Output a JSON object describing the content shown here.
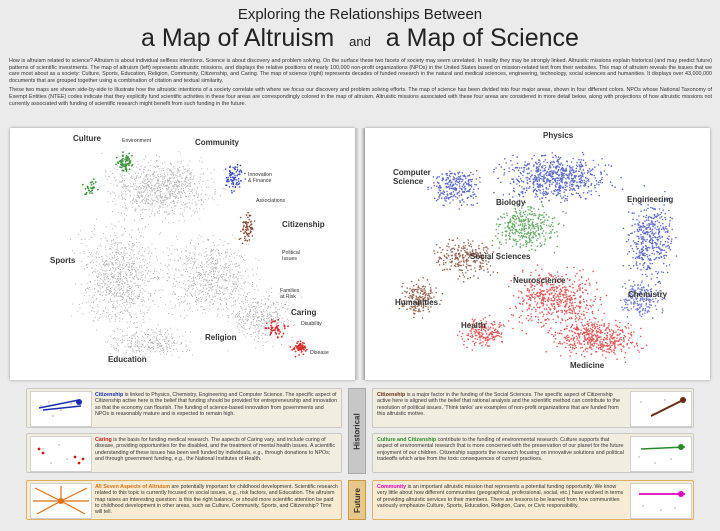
{
  "title": {
    "line1": "Exploring the Relationships Between",
    "left": "a Map of Altruism",
    "and": "and",
    "right": "a Map of Science"
  },
  "intro": {
    "p1": "How is altruism related to science? Altruism is about individual selfless intentions. Science is about discovery and problem solving. On the surface these two facets of society may seem unrelated. In reality they may be strongly linked. Altruistic missions explain historical (and may predict future) patterns of scientific investments. The map of altruism (left) represents altruistic missions, and displays the relative positions of nearly 100,000 non-profit organizations (NPOs) in the United States based on mission-related text from their websites. This map of altruism reveals the issues that we care most about as a society: Culture, Sports, Education, Religion, Community, Citizenship, and Caring. The map of science (right) represents decades of funded research in the natural and medical sciences, engineering, technology, social sciences and humanities. It displays over 43,000,000 documents that are grouped together using a combination of citation and textual similarity.",
    "p2": "These two maps are shown side-by-side to illustrate how the altruistic intentions of a society correlate with where we focus our discovery and problem solving efforts. The map of science has been divided into four major areas, shown in four different colors. NPOs whose National Taxonomy of Exempt Entities (NTEE) codes indicate that they explicitly fund scientific activities in these four areas are correspondingly colored in the map of altruism. Altruistic missions associated with these four areas are considered in more detail below, along with projections of how altruistic missions not currently associated with funding of scientific research might benefit from such funding in the future."
  },
  "altruism_labels": {
    "culture": "Culture",
    "environment": "Environment",
    "community": "Community",
    "innovation": "Innovation\n& Finance",
    "associations": "Associations",
    "citizenship": "Citizenship",
    "sports": "Sports",
    "political": "Political\nIssues",
    "families": "Families\nat Risk",
    "caring": "Caring",
    "disability": "Disability",
    "religion": "Religion",
    "education": "Education",
    "disease": "Disease"
  },
  "science_labels": {
    "physics": "Physics",
    "computer_science": "Computer\nScience",
    "engineering": "Engineering",
    "biology": "Biology",
    "social_sciences": "Social Sciences",
    "neuroscience": "Neuroscience",
    "humanities": "Humanities",
    "chemistry": "Chemistry",
    "health": "Health",
    "medicine": "Medicine"
  },
  "sections": {
    "historical": "Historical",
    "future": "Future"
  },
  "cards": {
    "citizenship_left": {
      "head": "Citizenship",
      "text": " is linked to Physics, Chemistry, Engineering and Computer Science. The specific aspect of Citizenship active here is the belief that funding should be provided for entrepreneurship and innovation so that the economy can flourish. The funding of science-based innovation from governments and NPOs is reasonably mature and is expected to remain high."
    },
    "caring_left": {
      "head": "Caring",
      "text": " is the basis for funding medical research. The aspects of Caring vary, and include curing of disease, providing opportunities for the disabled, and the treatment of mental health issues. A scientific understanding of these issues has been well funded by individuals, e.g., through donations to NPOs; and through government funding, e.g., the National Institutes of Health."
    },
    "all_seven": {
      "head": "All Seven Aspects of Altruism",
      "text": " are potentially important for childhood development. Scientific research related to this topic is currently focused on social issues, e.g., risk factors, and Education. The altruism map raises an interesting question: is this the right balance, or should more scientific attention be paid to childhood development in other areas, such as Culture, Community, Sports, and Citizenship? Time will tell."
    },
    "citizenship_right": {
      "head": "Citizenship",
      "text": " is a major factor in the funding of the Social Sciences. The specific aspect of Citizenship active here is aligned with the belief that rational analysis and the scientific method can contribute to the resolution of political issues. 'Think tanks' are examples of non-profit organizations that are funded from this altruistic motive."
    },
    "culture_citizenship": {
      "head": "Culture and Citizenship",
      "text": " contribute to the funding of environmental research. Culture supports that aspect of environmental research that is more concerned with the preservation of our planet for the future enjoyment of our children. Citizenship supports the research focusing on innovative solutions and political tradeoffs which arise from the toxic consequences of current practices."
    },
    "community": {
      "head": "Community",
      "text": " is an important altruistic mission that represents a potential funding opportunity. We know very little about how different communities (geographical, professional, social, etc.) have evolved in terms of providing altruistic services to their members. There are lessons to be learned from how communities variously emphasize Culture, Sports, Education, Religion, Care, or Civic responsibility."
    }
  },
  "colors": {
    "blue": "#1a2fb0",
    "green": "#2a8a2a",
    "red": "#d01818",
    "brown": "#6b2a10",
    "orange": "#e07010",
    "magenta": "#e000c0"
  }
}
